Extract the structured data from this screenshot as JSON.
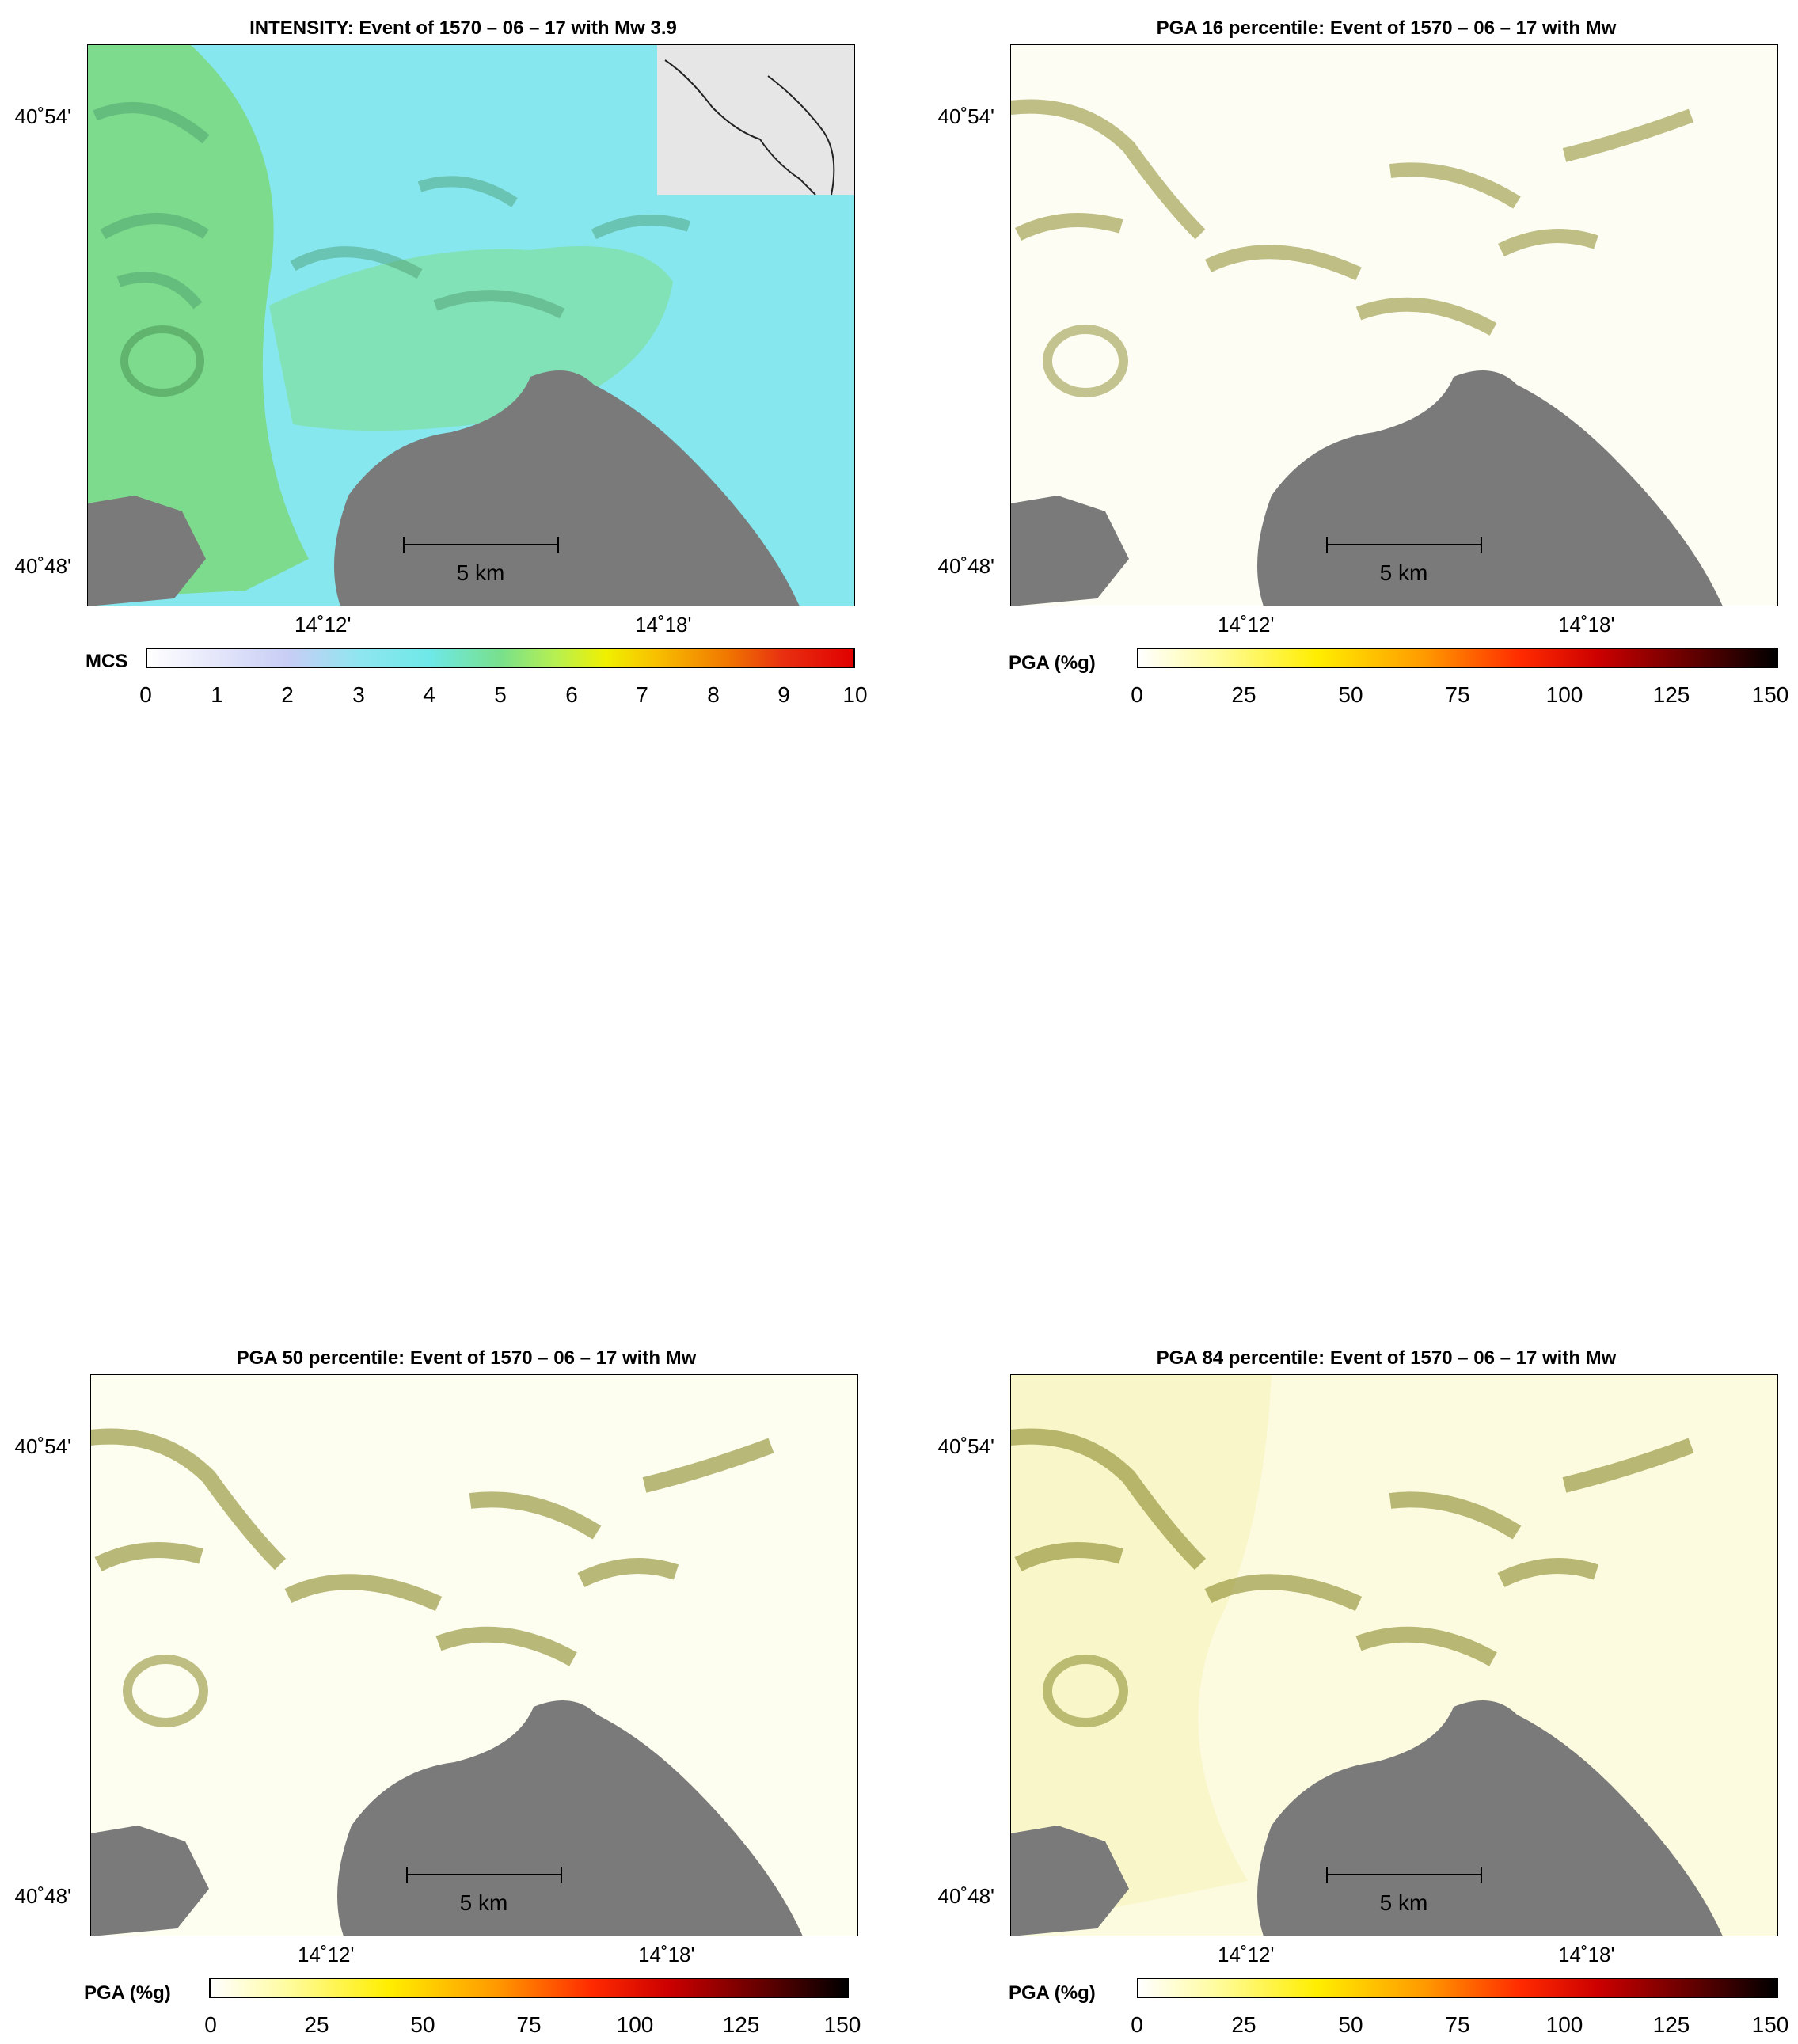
{
  "panels": [
    {
      "title": "INTENSITY: Event of 1570 – 06 – 17 with Mw 3.9",
      "kind": "intensity",
      "lat_labels": [
        "40˚54'",
        "40˚48'"
      ],
      "lon_labels": [
        "14˚12'",
        "14˚18'"
      ],
      "scale_label": "5 km",
      "colorbar": {
        "label": "MCS",
        "ticks": [
          "0",
          "1",
          "2",
          "3",
          "4",
          "5",
          "6",
          "7",
          "8",
          "9",
          "10"
        ],
        "colors": [
          "#ffffff",
          "#c8cdf5",
          "#8fe6f0",
          "#6ee8e8",
          "#78e08c",
          "#b8f050",
          "#f0f000",
          "#f8c000",
          "#f07800",
          "#e83010",
          "#e00000"
        ]
      }
    },
    {
      "title": "PGA 16 percentile: Event of 1570 – 06 – 17 with Mw",
      "kind": "pga",
      "lat_labels": [
        "40˚54'",
        "40˚48'"
      ],
      "lon_labels": [
        "14˚12'",
        "14˚18'"
      ],
      "scale_label": "5 km",
      "colorbar": {
        "label": "PGA (%g)",
        "ticks": [
          "0",
          "25",
          "50",
          "75",
          "100",
          "125",
          "150"
        ],
        "colors": [
          "#ffffff",
          "#fffca0",
          "#ffee00",
          "#ff9900",
          "#ff2a00",
          "#cc0000",
          "#5a0000",
          "#000000"
        ]
      }
    },
    {
      "title": "PGA 50 percentile: Event of 1570 – 06 – 17 with Mw",
      "kind": "pga",
      "lat_labels": [
        "40˚54'",
        "40˚48'"
      ],
      "lon_labels": [
        "14˚12'",
        "14˚18'"
      ],
      "scale_label": "5 km",
      "colorbar": {
        "label": "PGA (%g)",
        "ticks": [
          "0",
          "25",
          "50",
          "75",
          "100",
          "125",
          "150"
        ],
        "colors": [
          "#ffffff",
          "#fffca0",
          "#ffee00",
          "#ff9900",
          "#ff2a00",
          "#cc0000",
          "#5a0000",
          "#000000"
        ]
      }
    },
    {
      "title": "PGA 84 percentile: Event of 1570 – 06 – 17 with Mw",
      "kind": "pga",
      "lat_labels": [
        "40˚54'",
        "40˚48'"
      ],
      "lon_labels": [
        "14˚12'",
        "14˚18'"
      ],
      "scale_label": "5 km",
      "colorbar": {
        "label": "PGA (%g)",
        "ticks": [
          "0",
          "25",
          "50",
          "75",
          "100",
          "125",
          "150"
        ],
        "colors": [
          "#ffffff",
          "#fffca0",
          "#ffee00",
          "#ff9900",
          "#ff2a00",
          "#cc0000",
          "#5a0000",
          "#000000"
        ]
      }
    }
  ],
  "colors": {
    "sea": "#7a7a7a",
    "inset_land": "#e6e6e6",
    "relief_dark": "#8a8a2a",
    "intensity_base": "#7fe9ee",
    "intensity_green": "#7fd97a"
  }
}
